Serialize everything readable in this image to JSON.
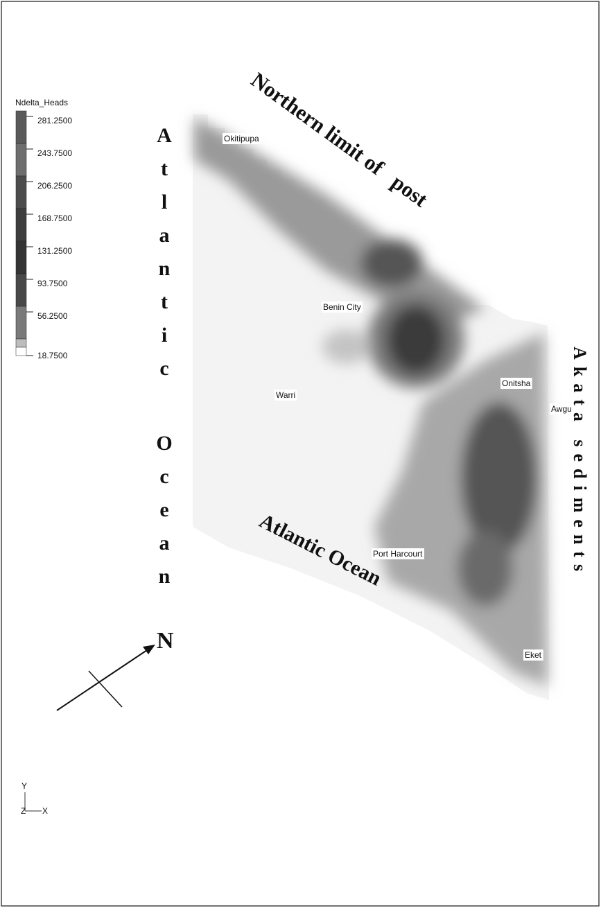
{
  "legend": {
    "title": "Ndelta_Heads",
    "labels": [
      "281.2500",
      "243.7500",
      "206.2500",
      "168.7500",
      "131.2500",
      "93.7500",
      "56.2500",
      "18.7500"
    ]
  },
  "annotations": {
    "northern_limit": "Northern limit of   post",
    "atlantic_west": "Atlantic Ocean",
    "atlantic_south": "Atlantic Ocean",
    "akata": "Akata sediments"
  },
  "places": [
    "Okitipupa",
    "Benin City",
    "Warri",
    "Onitsha",
    "Awgu",
    "Port Harcourt",
    "Eket"
  ],
  "north": "N",
  "axes": {
    "y": "Y",
    "x": "X",
    "z": "Z"
  }
}
